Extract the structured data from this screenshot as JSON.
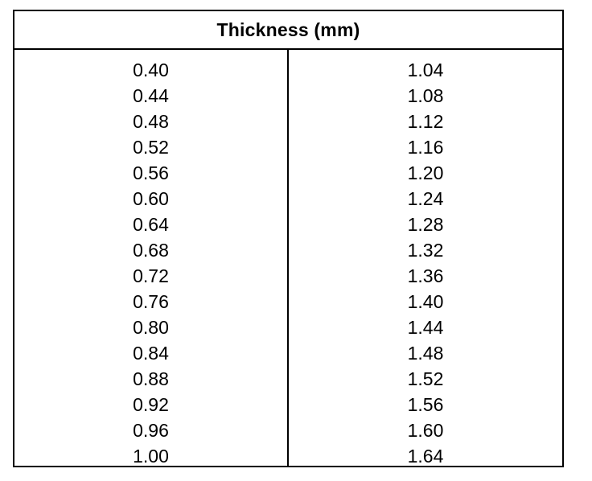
{
  "table": {
    "header": "Thickness (mm)",
    "left_column": [
      "0.40",
      "0.44",
      "0.48",
      "0.52",
      "0.56",
      "0.60",
      "0.64",
      "0.68",
      "0.72",
      "0.76",
      "0.80",
      "0.84",
      "0.88",
      "0.92",
      "0.96",
      "1.00"
    ],
    "right_column": [
      "1.04",
      "1.08",
      "1.12",
      "1.16",
      "1.20",
      "1.24",
      "1.28",
      "1.32",
      "1.36",
      "1.40",
      "1.44",
      "1.48",
      "1.52",
      "1.56",
      "1.60",
      "1.64"
    ]
  }
}
